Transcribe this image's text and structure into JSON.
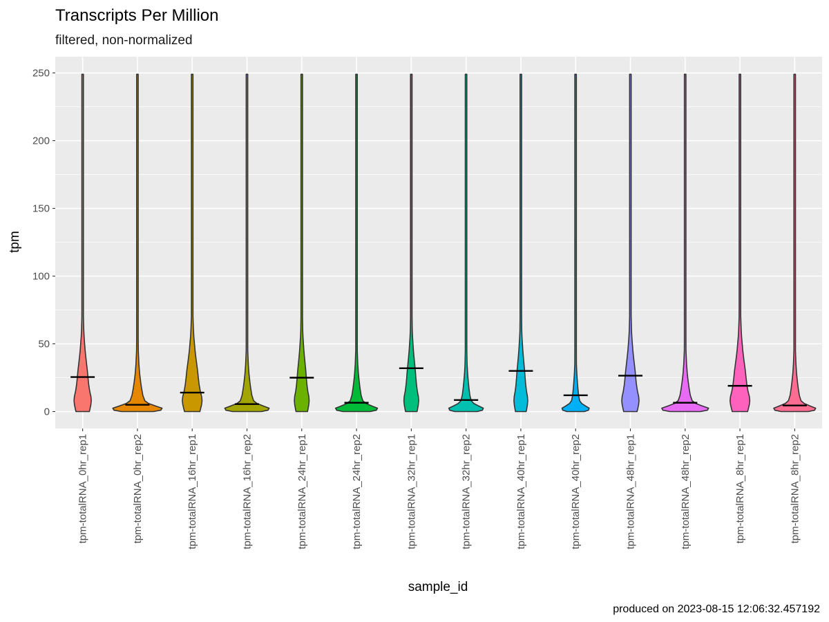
{
  "chart_data": {
    "type": "violin",
    "title": "Transcripts Per Million",
    "subtitle": "filtered, non-normalized",
    "xlabel": "sample_id",
    "ylabel": "tpm",
    "caption": "produced on 2023-08-15 12:06:32.457192",
    "ylim": [
      -12.5,
      262
    ],
    "yticks": [
      0,
      50,
      100,
      150,
      200,
      250
    ],
    "yticklabels": [
      "0",
      "50",
      "100",
      "150",
      "200",
      "250"
    ],
    "grid": true,
    "legend": "none",
    "series": [
      {
        "category": "tpm-totalRNA_0hr_rep1",
        "color": "#F8766D",
        "median": 25.5,
        "shape": "rep1",
        "width_frac": 0.35
      },
      {
        "category": "tpm-totalRNA_0hr_rep2",
        "color": "#E58700",
        "median": 5.0,
        "shape": "rep2",
        "width_frac": 1.0
      },
      {
        "category": "tpm-totalRNA_16hr_rep1",
        "color": "#C99800",
        "median": 14.0,
        "shape": "rep1",
        "width_frac": 0.4
      },
      {
        "category": "tpm-totalRNA_16hr_rep2",
        "color": "#A3A500",
        "median": 5.5,
        "shape": "rep2",
        "width_frac": 0.9
      },
      {
        "category": "tpm-totalRNA_24hr_rep1",
        "color": "#6BB100",
        "median": 25.0,
        "shape": "rep1",
        "width_frac": 0.3
      },
      {
        "category": "tpm-totalRNA_24hr_rep2",
        "color": "#00BA38",
        "median": 6.5,
        "shape": "rep2",
        "width_frac": 0.85
      },
      {
        "category": "tpm-totalRNA_32hr_rep1",
        "color": "#00BF7D",
        "median": 32.0,
        "shape": "rep1",
        "width_frac": 0.3
      },
      {
        "category": "tpm-totalRNA_32hr_rep2",
        "color": "#00C0AF",
        "median": 8.5,
        "shape": "rep2",
        "width_frac": 0.7
      },
      {
        "category": "tpm-totalRNA_40hr_rep1",
        "color": "#00BCD8",
        "median": 30.0,
        "shape": "rep1",
        "width_frac": 0.28
      },
      {
        "category": "tpm-totalRNA_40hr_rep2",
        "color": "#00B0F6",
        "median": 12.0,
        "shape": "rep2",
        "width_frac": 0.55
      },
      {
        "category": "tpm-totalRNA_48hr_rep1",
        "color": "#9590FF",
        "median": 26.5,
        "shape": "rep1",
        "width_frac": 0.35
      },
      {
        "category": "tpm-totalRNA_48hr_rep2",
        "color": "#E76BF3",
        "median": 6.5,
        "shape": "rep2",
        "width_frac": 0.95
      },
      {
        "category": "tpm-totalRNA_8hr_rep1",
        "color": "#FF62BC",
        "median": 19.0,
        "shape": "rep1",
        "width_frac": 0.4
      },
      {
        "category": "tpm-totalRNA_8hr_rep2",
        "color": "#FF6C91",
        "median": 4.5,
        "shape": "rep2",
        "width_frac": 0.85
      }
    ],
    "max_value": 249
  }
}
